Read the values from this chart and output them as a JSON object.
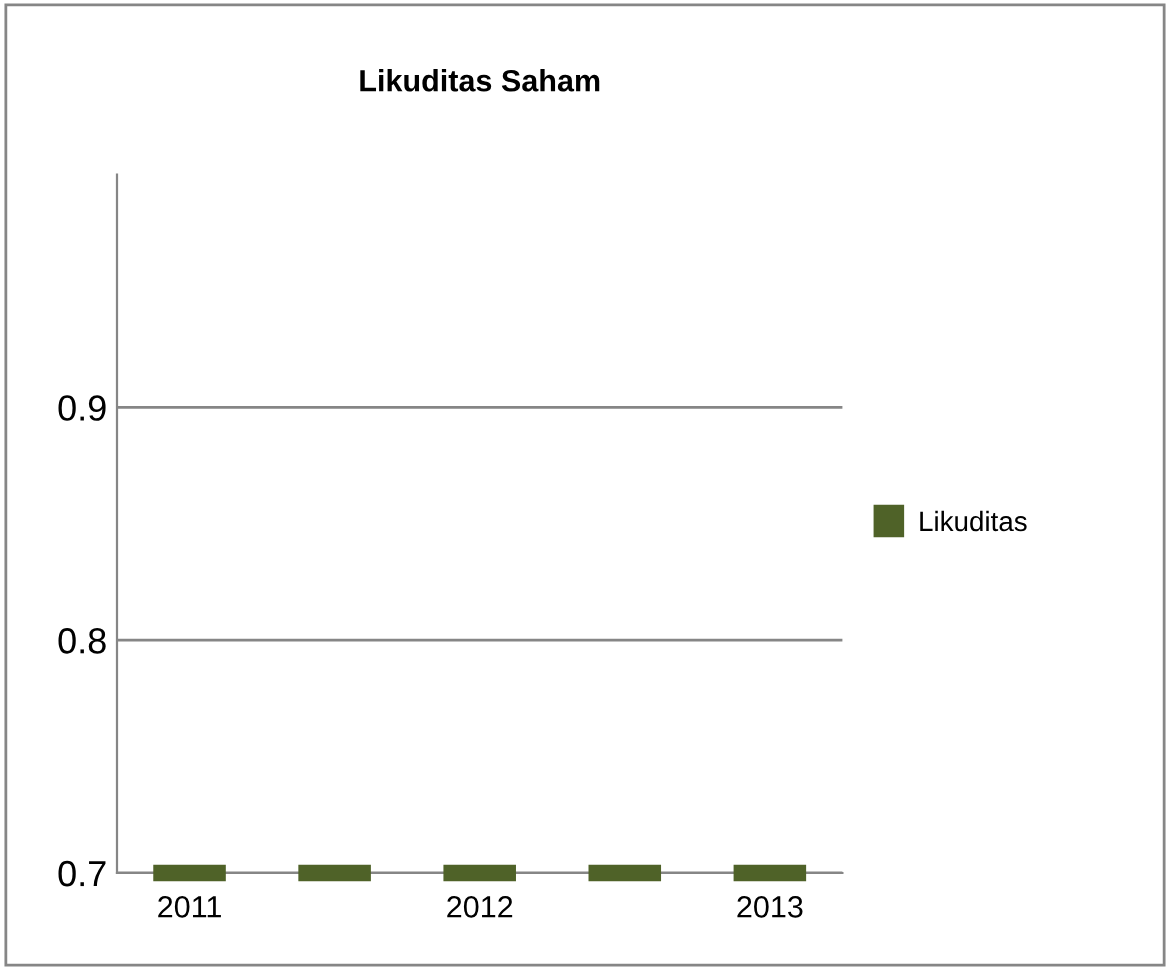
{
  "chart_data": {
    "type": "bar",
    "title": "Likuditas Saham",
    "categories": [
      "2011",
      null,
      "2012",
      null,
      "2013"
    ],
    "series": [
      {
        "name": "Likuditas",
        "color": "#4f6228",
        "values": [
          0.7,
          0.7,
          0.7,
          0.7,
          0.7
        ]
      }
    ],
    "ylim": [
      0.7,
      1.0
    ],
    "yticks": [
      0.7,
      0.8,
      0.9
    ],
    "grid": "y",
    "legend": "right"
  }
}
